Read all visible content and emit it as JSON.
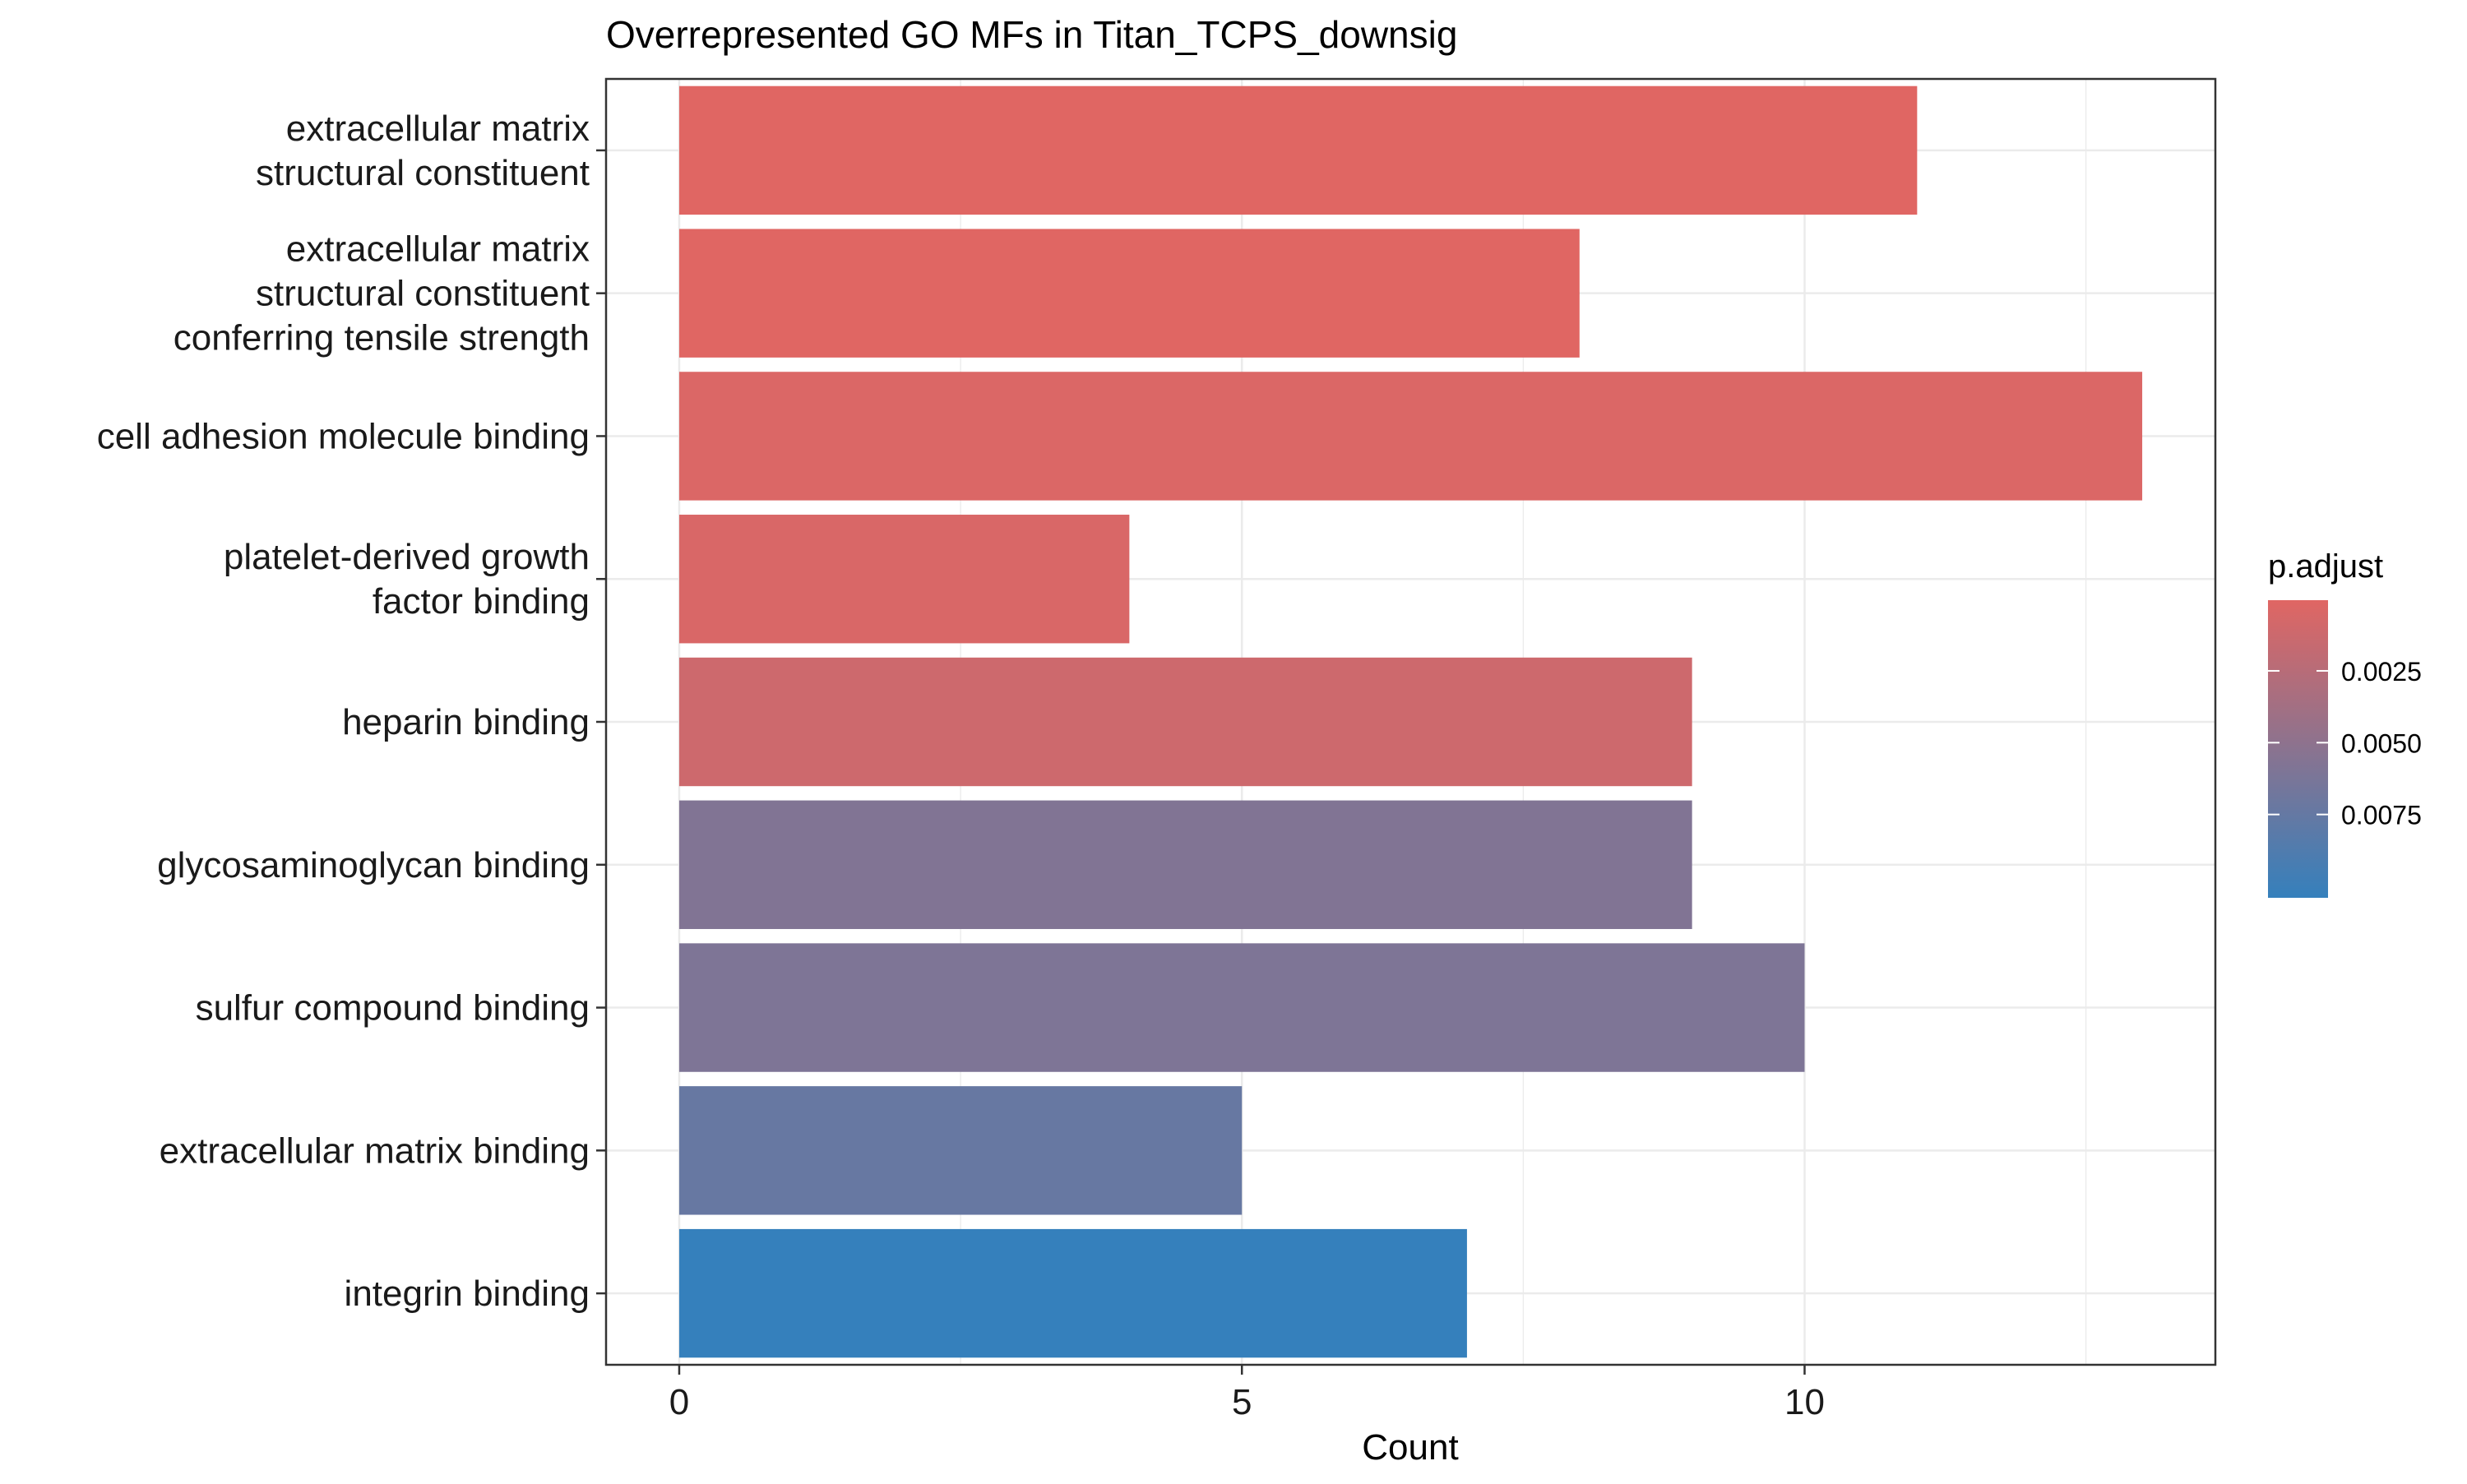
{
  "chart_data": {
    "type": "bar",
    "orientation": "horizontal",
    "title": "Overrepresented GO MFs in Titan_TCPS_downsig",
    "xlabel": "Count",
    "ylabel": "",
    "xlim": [
      -0.65,
      13.65
    ],
    "xticks": [
      0,
      5,
      10
    ],
    "grid": true,
    "categories": [
      [
        "extracellular matrix",
        "structural constituent"
      ],
      [
        "extracellular matrix",
        "structural constituent",
        "conferring tensile strength"
      ],
      [
        "cell adhesion molecule binding"
      ],
      [
        "platelet-derived growth",
        "factor binding"
      ],
      [
        "heparin binding"
      ],
      [
        "glycosaminoglycan binding"
      ],
      [
        "sulfur compound binding"
      ],
      [
        "extracellular matrix binding"
      ],
      [
        "integrin binding"
      ]
    ],
    "values": [
      11,
      8,
      13,
      4,
      9,
      9,
      10,
      5,
      7
    ],
    "p_adjust": [
      4e-05,
      6e-05,
      0.00035,
      0.00045,
      0.0012,
      0.0058,
      0.006,
      0.0074,
      0.0104
    ],
    "legend": {
      "title": "p.adjust",
      "position": "right",
      "ticks": [
        "0.0025",
        "0.0050",
        "0.0075"
      ],
      "tick_values": [
        0.0025,
        0.005,
        0.0075
      ],
      "range": [
        4e-05,
        0.0104
      ],
      "color_low": "#e06663",
      "color_high": "#3580bc"
    }
  }
}
